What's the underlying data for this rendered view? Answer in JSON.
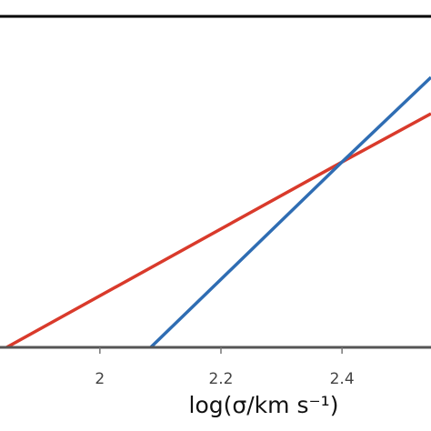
{
  "chart_data": {
    "type": "line",
    "x_label": "log(σ/km s⁻¹)",
    "xlim": [
      1.835,
      2.547
    ],
    "xticks": [
      2,
      2.2,
      2.4
    ],
    "ylim": [
      0,
      1
    ],
    "series": [
      {
        "color": "#d93a2b",
        "x": [
          1.846,
          2.4,
          2.547
        ],
        "values": [
          0,
          0.56,
          0.706
        ]
      },
      {
        "color": "#2f6db3",
        "x": [
          2.084,
          2.4,
          2.547
        ],
        "values": [
          0,
          0.56,
          0.816
        ]
      }
    ]
  }
}
